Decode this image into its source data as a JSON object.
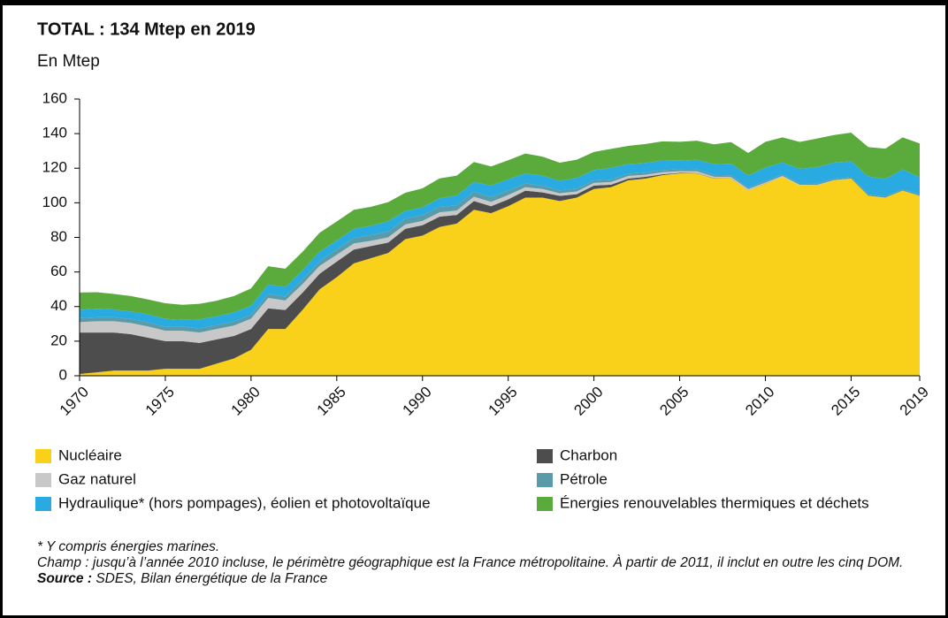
{
  "chart_data": {
    "type": "stacked_area",
    "title": "TOTAL : 134 Mtep en 2019",
    "subtitle": "En Mtep",
    "x": [
      1970,
      1971,
      1972,
      1973,
      1974,
      1975,
      1976,
      1977,
      1978,
      1979,
      1980,
      1981,
      1982,
      1983,
      1984,
      1985,
      1986,
      1987,
      1988,
      1989,
      1990,
      1991,
      1992,
      1993,
      1994,
      1995,
      1996,
      1997,
      1998,
      1999,
      2000,
      2001,
      2002,
      2003,
      2004,
      2005,
      2006,
      2007,
      2008,
      2009,
      2010,
      2011,
      2012,
      2013,
      2014,
      2015,
      2016,
      2017,
      2018,
      2019
    ],
    "xlim": [
      1970,
      2019
    ],
    "xticks": [
      1970,
      1975,
      1980,
      1985,
      1990,
      1995,
      2000,
      2005,
      2010,
      2015,
      2019
    ],
    "ylim": [
      0,
      160
    ],
    "yticks": [
      0,
      20,
      40,
      60,
      80,
      100,
      120,
      140,
      160
    ],
    "series": [
      {
        "name": "Nucléaire",
        "color": "#f9d11b",
        "values": [
          1,
          2,
          3,
          3,
          3,
          4,
          4,
          4,
          7,
          10,
          15,
          27,
          27,
          38,
          50,
          57,
          65,
          68,
          71,
          79,
          81,
          86,
          88,
          96,
          94,
          98,
          103,
          103,
          101,
          103,
          108,
          109,
          113,
          114,
          116,
          117,
          117,
          114,
          114,
          107,
          111,
          115,
          110,
          110,
          113,
          114,
          104,
          103,
          107,
          104
        ]
      },
      {
        "name": "Charbon",
        "color": "#4d4d4d",
        "values": [
          24,
          23,
          22,
          21,
          19,
          16,
          16,
          15,
          14,
          13,
          12,
          12,
          11,
          10,
          9,
          9,
          8,
          7,
          6,
          6,
          6,
          6,
          5,
          5,
          4,
          4,
          4,
          3,
          3,
          2,
          2,
          1.5,
          1,
          1,
          0.5,
          0.3,
          0.2,
          0.2,
          0.1,
          0.1,
          0.1,
          0,
          0,
          0,
          0,
          0,
          0,
          0,
          0,
          0
        ]
      },
      {
        "name": "Gaz naturel",
        "color": "#c8c8c8",
        "values": [
          6,
          6.5,
          6.5,
          6.5,
          6.5,
          6,
          6,
          6,
          6,
          6,
          6,
          6,
          5.5,
          5,
          4.5,
          4,
          3.5,
          3,
          3,
          2.5,
          2.5,
          2.5,
          2.5,
          2.5,
          2.5,
          2.5,
          2,
          2,
          1.5,
          1.5,
          1.5,
          1.5,
          1.5,
          1.2,
          1.2,
          1,
          1,
          0.9,
          0.8,
          0.8,
          0.6,
          0.5,
          0.4,
          0.3,
          0.1,
          0,
          0,
          0,
          0,
          0
        ]
      },
      {
        "name": "Pétrole",
        "color": "#5b9aa8",
        "values": [
          2.3,
          2.3,
          2.3,
          2.3,
          2.3,
          2.3,
          2.3,
          2.3,
          2.3,
          2.3,
          2.2,
          2.3,
          2.3,
          2.5,
          2.7,
          3,
          3.2,
          3.3,
          3.4,
          3.3,
          3.3,
          3.1,
          3,
          2.9,
          2.8,
          2.6,
          2.2,
          1.9,
          1.7,
          1.6,
          1.5,
          1.4,
          1.4,
          1.3,
          1.2,
          1.1,
          1.1,
          1,
          1,
          0.9,
          0.9,
          0.9,
          0.8,
          0.8,
          0.8,
          0.8,
          0.8,
          0.8,
          0.8,
          0.8
        ]
      },
      {
        "name": "Hydraulique* (hors pompages), éolien et photovoltaïque",
        "color": "#29abe2",
        "values": [
          4.8,
          5,
          4.5,
          4.3,
          4.8,
          4.6,
          4,
          5.3,
          5.1,
          5.3,
          5.3,
          5.5,
          5.6,
          5.6,
          5.5,
          5.2,
          5.3,
          5.4,
          6,
          4.5,
          4.6,
          5,
          5.7,
          5.7,
          6.7,
          6.5,
          5.8,
          5.8,
          5.5,
          6.3,
          5.9,
          6.8,
          5.5,
          5.5,
          5.6,
          4.9,
          5.6,
          6.2,
          6.7,
          7,
          7.7,
          6.9,
          8.5,
          9.5,
          9.3,
          9.3,
          10.4,
          10,
          11.5,
          10
        ]
      },
      {
        "name": "Énergies renouvelables thermiques et déchets",
        "color": "#5aab3c",
        "values": [
          10,
          9.5,
          9,
          9,
          8.5,
          9,
          8.7,
          9,
          9,
          9.5,
          10,
          10.5,
          10.5,
          10.5,
          11,
          11,
          11,
          11,
          11,
          10.5,
          11,
          11.5,
          11.5,
          11.5,
          11,
          11,
          11.5,
          11,
          10.5,
          10.5,
          10.5,
          11,
          10.5,
          11,
          11,
          11,
          11,
          11.5,
          12.5,
          13,
          15,
          14.5,
          15.5,
          16.5,
          16,
          16.5,
          17,
          17.5,
          18.5,
          19.5
        ]
      }
    ],
    "notes": [
      "* Y compris énergies marines.",
      "Champ : jusqu’à l’année 2010 incluse, le périmètre géographique est la France métropolitaine. À partir de 2011, il inclut en outre les cinq DOM."
    ],
    "source": {
      "label": "Source :",
      "text": "SDES, Bilan énergétique de la France"
    }
  }
}
